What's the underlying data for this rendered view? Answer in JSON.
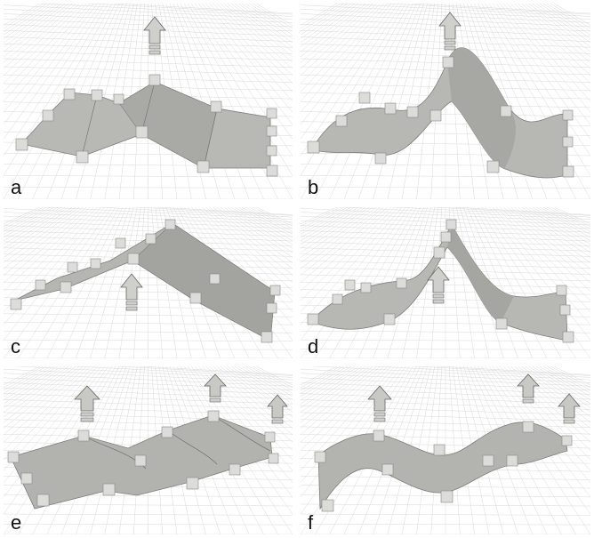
{
  "panels": [
    {
      "label": "a"
    },
    {
      "label": "b"
    },
    {
      "label": "c"
    },
    {
      "label": "d"
    },
    {
      "label": "e"
    },
    {
      "label": "f"
    }
  ],
  "colors": {
    "surface": "#b5b5b2",
    "surface_dark": "#8f8f8c",
    "block": "#d8d8d6",
    "arrow": "#c9c9c6",
    "grid": "#d9d9d9"
  }
}
